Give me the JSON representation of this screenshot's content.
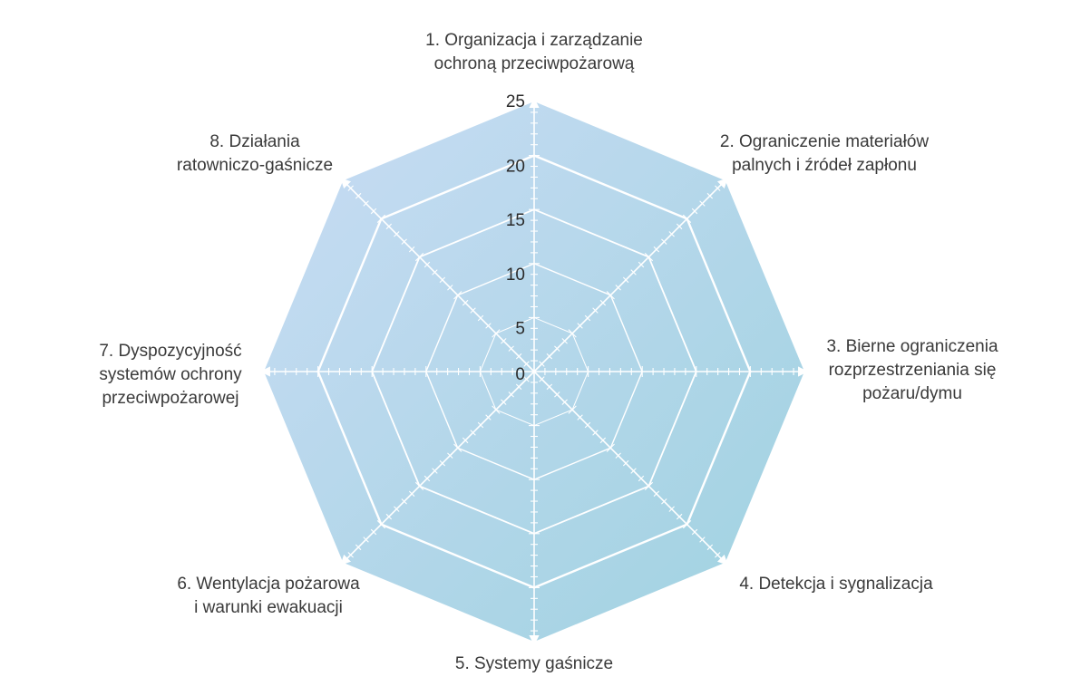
{
  "chart_data": {
    "type": "radar",
    "title": "",
    "axes": [
      [
        "1. Organizacja i zarządzanie",
        "ochroną przeciwpożarową"
      ],
      [
        "2. Ograniczenie materiałów",
        "palnych i źródeł zapłonu"
      ],
      [
        "3. Bierne ograniczenia",
        "rozprzestrzeniania się",
        "pożaru/dymu"
      ],
      [
        "4. Detekcja i sygnalizacja"
      ],
      [
        "5. Systemy gaśnicze"
      ],
      [
        "6. Wentylacja pożarowa",
        "i warunki ewakuacji"
      ],
      [
        "7. Dyspozycyjność",
        "systemów ochrony",
        "przeciwpożarowej"
      ],
      [
        "8. Działania",
        "ratowniczo-gaśnicze"
      ]
    ],
    "scale": {
      "min": 0,
      "max": 25,
      "major_step": 5,
      "minor_step": 1
    },
    "tick_labels": [
      "0",
      "5",
      "10",
      "15",
      "20",
      "25"
    ],
    "series": [],
    "colors": {
      "fill_top_left": "#c7dcf3",
      "fill_bottom_right": "#a3d3e2",
      "grid": "#ffffff",
      "text": "#3a3a3a"
    }
  }
}
